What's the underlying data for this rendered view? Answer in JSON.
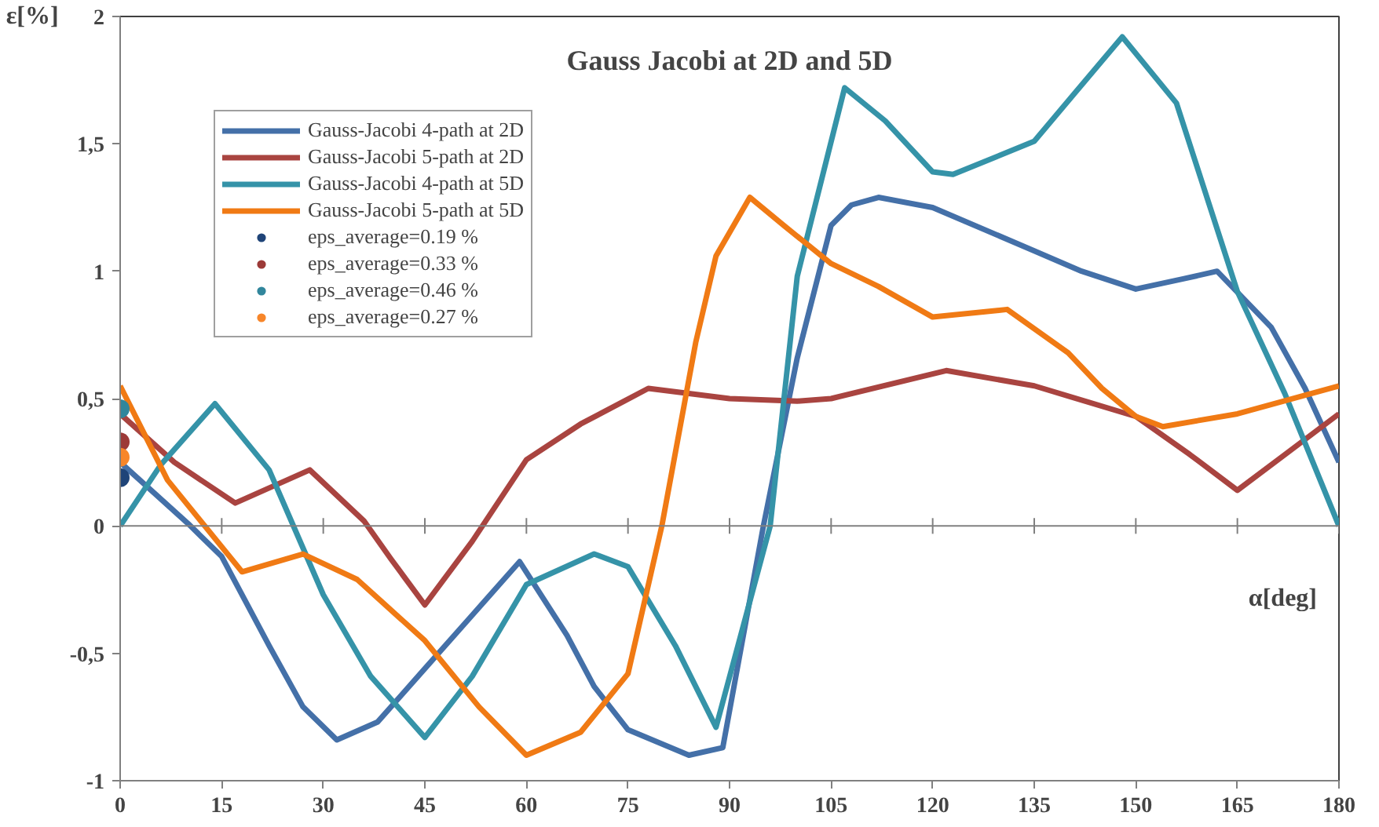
{
  "chart_data": {
    "type": "line",
    "title": "Gauss Jacobi at 2D and 5D",
    "xlabel": "α[deg]",
    "ylabel": "ε[%]",
    "series": [
      {
        "name": "Gauss-Jacobi 4-path at 2D",
        "color": "#4470a8",
        "x": [
          0,
          5,
          10,
          15,
          22,
          27,
          32,
          38,
          45,
          52,
          59,
          66,
          70,
          75,
          84,
          89,
          95,
          100,
          105,
          108,
          112,
          120,
          135,
          142,
          150,
          157,
          162,
          170,
          175,
          180
        ],
        "values": [
          0.25,
          0.13,
          0.01,
          -0.12,
          -0.47,
          -0.71,
          -0.84,
          -0.77,
          -0.56,
          -0.35,
          -0.14,
          -0.43,
          -0.63,
          -0.8,
          -0.9,
          -0.87,
          0,
          0.66,
          1.18,
          1.26,
          1.29,
          1.25,
          1.08,
          1.0,
          0.93,
          0.97,
          1.0,
          0.78,
          0.54,
          0.25
        ]
      },
      {
        "name": "Gauss-Jacobi 5-path at 2D",
        "color": "#a94440",
        "x": [
          0,
          8,
          17,
          28,
          36,
          40,
          45,
          52,
          60,
          68,
          78,
          90,
          100,
          105,
          122,
          135,
          150,
          158,
          165,
          172,
          180
        ],
        "values": [
          0.44,
          0.25,
          0.09,
          0.22,
          0.02,
          -0.13,
          -0.31,
          -0.06,
          0.26,
          0.4,
          0.54,
          0.5,
          0.49,
          0.5,
          0.61,
          0.55,
          0.43,
          0.28,
          0.14,
          0.28,
          0.44
        ]
      },
      {
        "name": "Gauss-Jacobi 4-path at 5D",
        "color": "#3593a8",
        "x": [
          0,
          6,
          14,
          22,
          30,
          37,
          45,
          52,
          60,
          70,
          75,
          82,
          88,
          96,
          100,
          107,
          113,
          120,
          123,
          135,
          141,
          148,
          156,
          165,
          172,
          180
        ],
        "values": [
          0,
          0.24,
          0.48,
          0.22,
          -0.27,
          -0.59,
          -0.83,
          -0.59,
          -0.23,
          -0.11,
          -0.16,
          -0.47,
          -0.79,
          0,
          0.98,
          1.72,
          1.59,
          1.39,
          1.38,
          1.51,
          1.7,
          1.92,
          1.66,
          0.92,
          0.52,
          0
        ]
      },
      {
        "name": "Gauss-Jacobi 5-path at 5D",
        "color": "#f07a14",
        "x": [
          0,
          7,
          18,
          27,
          35,
          45,
          53,
          60,
          68,
          75,
          80,
          85,
          88,
          93,
          98,
          105,
          112,
          120,
          131,
          140,
          145,
          150,
          154,
          165,
          180
        ],
        "values": [
          0.55,
          0.18,
          -0.18,
          -0.11,
          -0.21,
          -0.45,
          -0.71,
          -0.9,
          -0.81,
          -0.58,
          0,
          0.72,
          1.06,
          1.29,
          1.18,
          1.03,
          0.94,
          0.82,
          0.85,
          0.68,
          0.54,
          0.43,
          0.39,
          0.44,
          0.55
        ]
      },
      {
        "name": "eps_average=0.19 %",
        "type": "scatter",
        "marker": "circle",
        "color": "#1f4478",
        "x": [
          0
        ],
        "values": [
          0.19
        ]
      },
      {
        "name": "eps_average=0.33 %",
        "type": "scatter",
        "marker": "circle",
        "color": "#9c3a38",
        "x": [
          0
        ],
        "values": [
          0.33
        ]
      },
      {
        "name": "eps_average=0.46 %",
        "type": "scatter",
        "marker": "circle",
        "color": "#31869c",
        "x": [
          0
        ],
        "values": [
          0.46
        ]
      },
      {
        "name": "eps_average=0.27 %",
        "type": "scatter",
        "marker": "circle",
        "color": "#f7862a",
        "x": [
          0
        ],
        "values": [
          0.27
        ]
      }
    ],
    "xlim": [
      0,
      180
    ],
    "xticks": [
      0,
      15,
      30,
      45,
      60,
      75,
      90,
      105,
      120,
      135,
      150,
      165,
      180
    ],
    "ylim": [
      -1,
      2
    ],
    "yticks": [
      {
        "value": -1,
        "label": "-1"
      },
      {
        "value": -0.5,
        "label": "-0,5"
      },
      0,
      {
        "value": 0.5,
        "label": "0,5"
      },
      1,
      {
        "value": 1.5,
        "label": "1,5"
      },
      2
    ],
    "ref_lines": [
      {
        "axis": "y",
        "value": 0,
        "color": "#808080",
        "line_style": "solid"
      }
    ],
    "grid": false,
    "legend": "top left",
    "line_style": "solid"
  }
}
